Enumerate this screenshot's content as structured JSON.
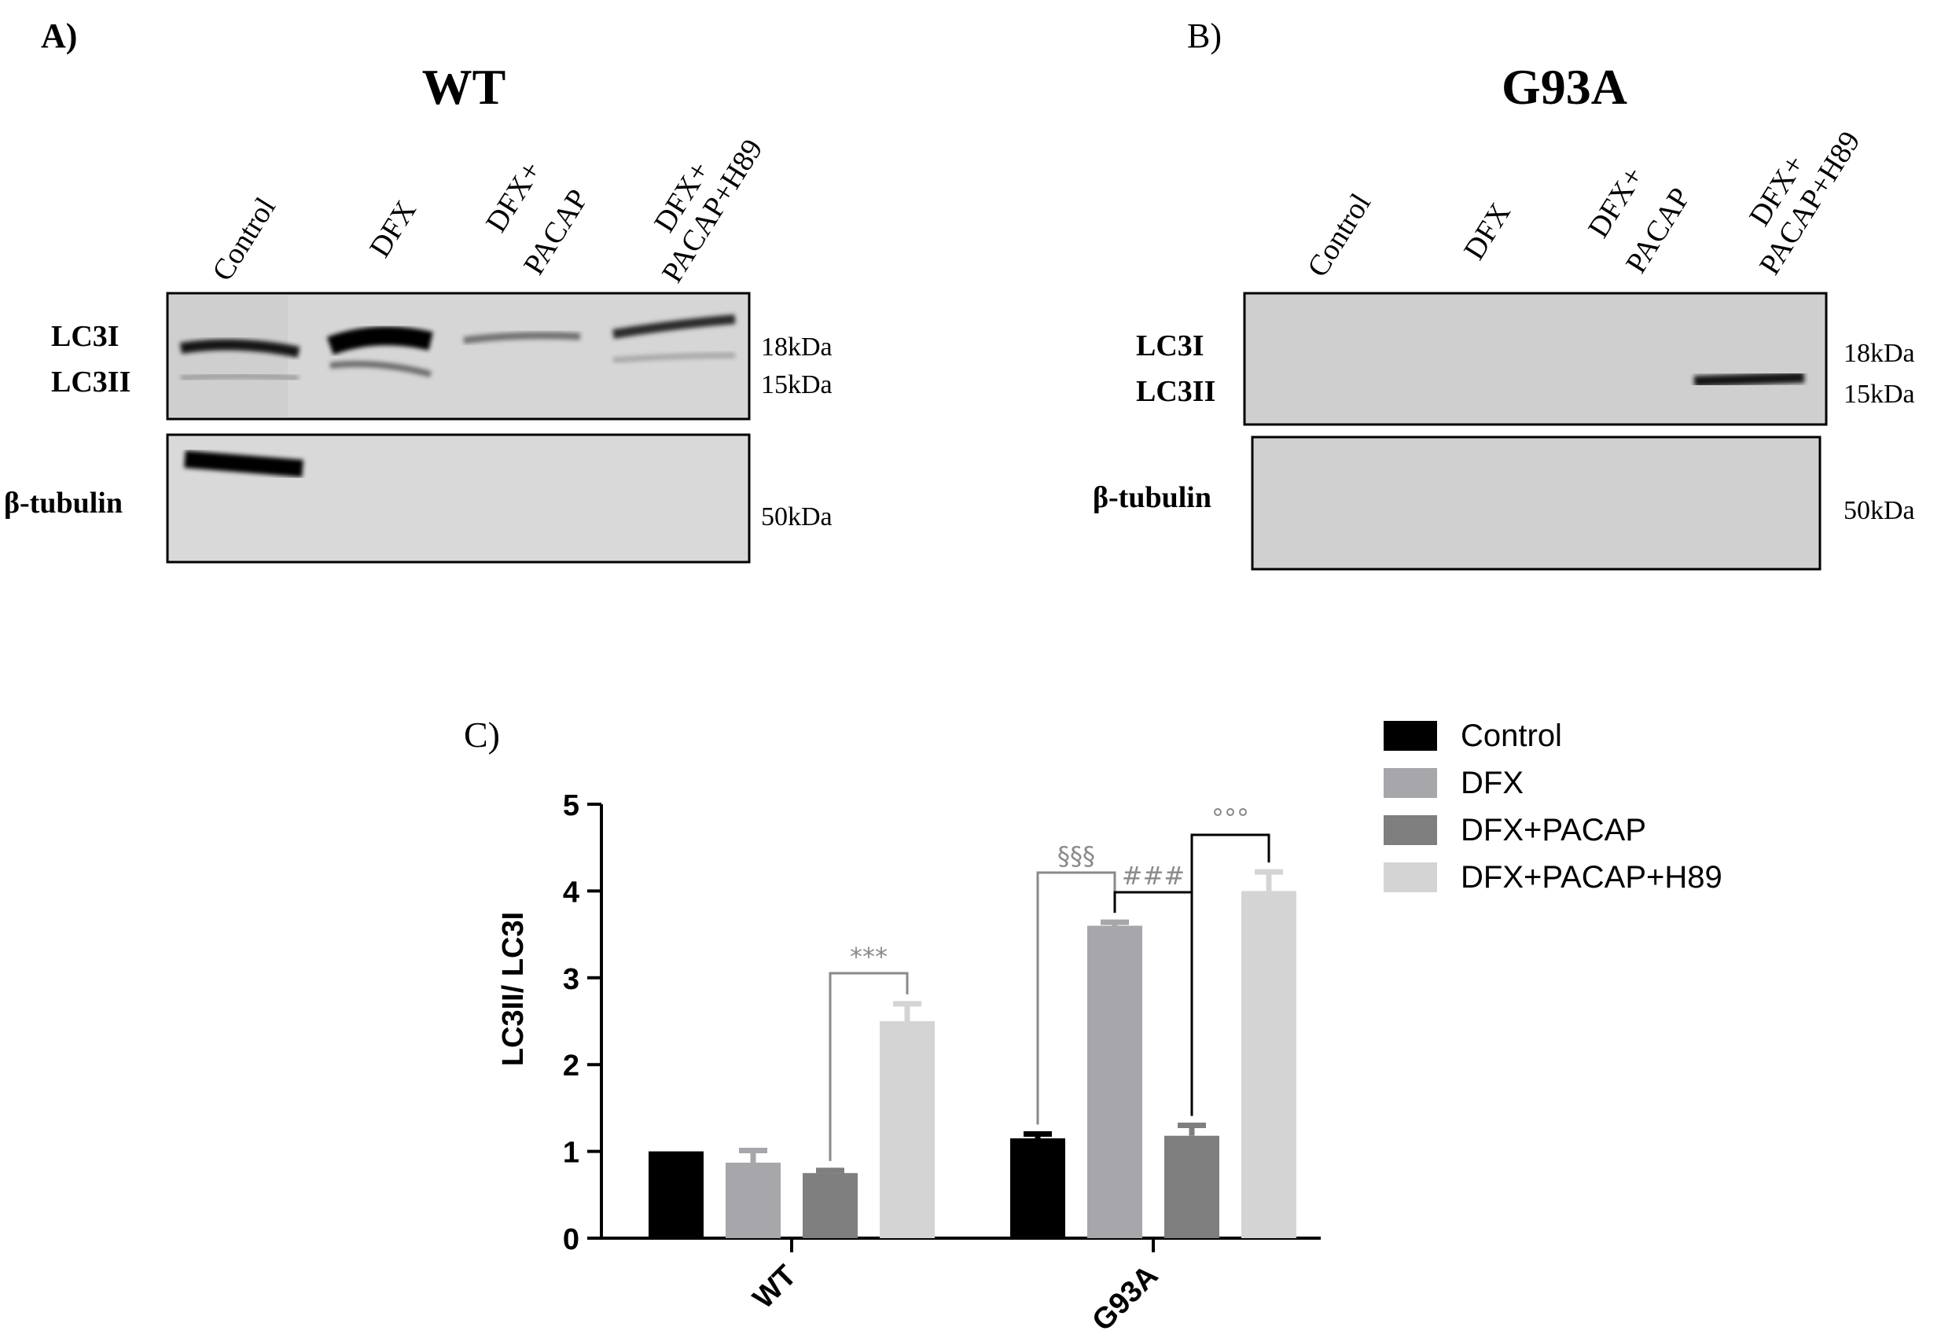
{
  "panels": {
    "a": {
      "letter": "A)",
      "title": "WT",
      "lanes": [
        [
          "Control"
        ],
        [
          "DFX"
        ],
        [
          "DFX+",
          "PACAP"
        ],
        [
          "DFX+",
          "PACAP+H89"
        ]
      ],
      "band_labels": {
        "top": "LC3I",
        "bottom": "LC3II",
        "loading": "β-tubulin"
      },
      "markers": {
        "top": "18kDa",
        "bottom": "15kDa",
        "loading": "50kDa"
      }
    },
    "b": {
      "letter": "B)",
      "title": "G93A",
      "lanes": [
        [
          "Control"
        ],
        [
          "DFX"
        ],
        [
          "DFX+",
          "PACAP"
        ],
        [
          "DFX+",
          "PACAP+H89"
        ]
      ],
      "band_labels": {
        "top": "LC3I",
        "bottom": "LC3II",
        "loading": "β-tubulin"
      },
      "markers": {
        "top": "18kDa",
        "bottom": "15kDa",
        "loading": "50kDa"
      }
    },
    "c": {
      "letter": "C)"
    }
  },
  "colors": {
    "control": "#000000",
    "dfx": "#a6a6ab",
    "dfx_pacap": "#7f7f7f",
    "dfx_pacap_h89": "#d4d4d4",
    "bracket_gray": "#8a8a8a"
  },
  "chart_data": {
    "type": "bar",
    "categories": [
      "WT",
      "G93A"
    ],
    "series": [
      {
        "name": "Control",
        "values": [
          1.0,
          1.15
        ],
        "errors": [
          0.0,
          0.05
        ]
      },
      {
        "name": "DFX",
        "values": [
          0.87,
          3.6
        ],
        "errors": [
          0.14,
          0.04
        ]
      },
      {
        "name": "DFX+PACAP",
        "values": [
          0.75,
          1.18
        ],
        "errors": [
          0.03,
          0.12
        ]
      },
      {
        "name": "DFX+PACAP+H89",
        "values": [
          2.5,
          4.0
        ],
        "errors": [
          0.2,
          0.22
        ]
      }
    ],
    "xlabel": "",
    "ylabel": "LC3II/ LC3I",
    "ylim": [
      0,
      5
    ],
    "yticks": [
      0,
      1,
      2,
      3,
      4,
      5
    ],
    "legend_position": "top-right",
    "grid": false,
    "annotations": [
      {
        "text": "***",
        "group": 0,
        "from_series": 2,
        "to_series": 3
      },
      {
        "text": "§§§",
        "group": 1,
        "from_series": 0,
        "to_series": 1
      },
      {
        "text": "###",
        "group": 1,
        "from_series": 1,
        "to_series": 2
      },
      {
        "text": "°°°",
        "group": 1,
        "from_series": 2,
        "to_series": 3
      }
    ]
  }
}
